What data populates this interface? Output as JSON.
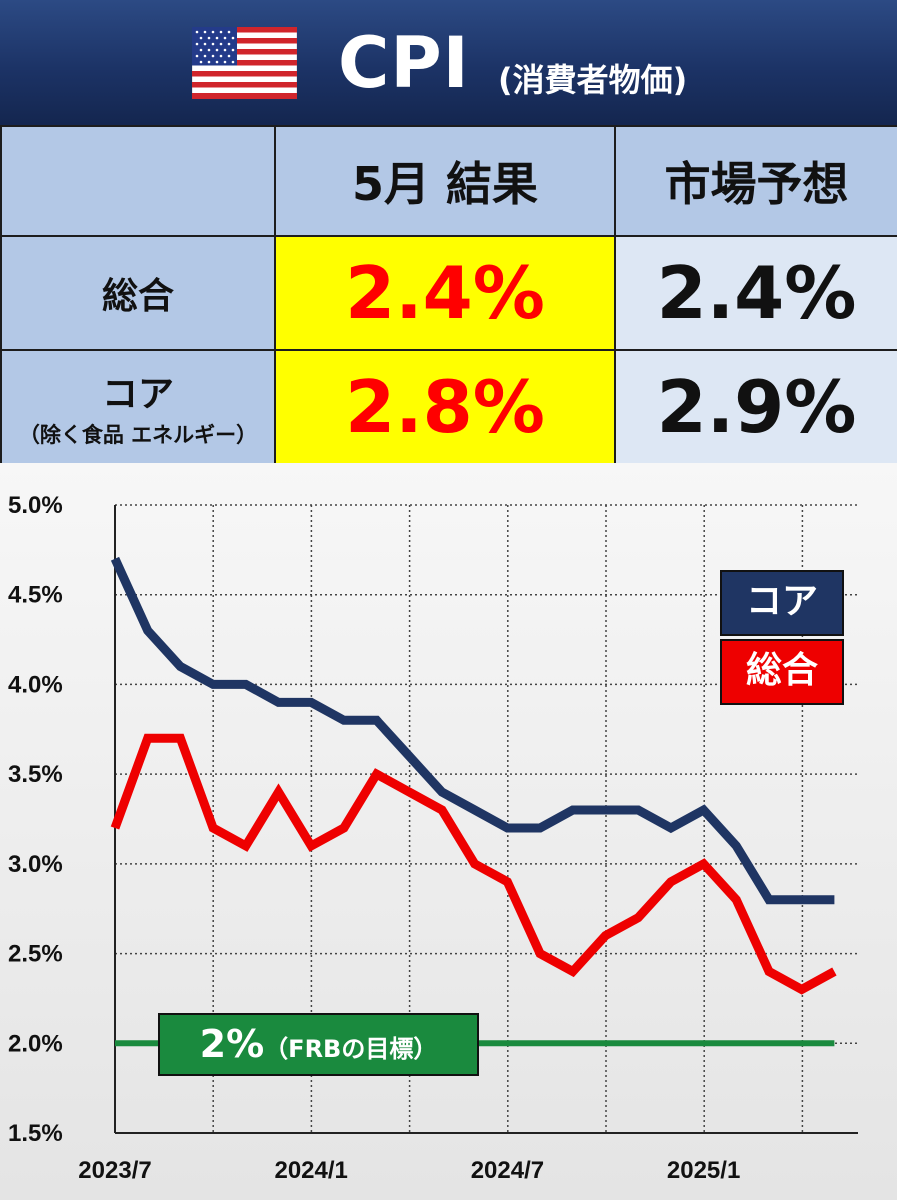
{
  "header": {
    "title": "CPI",
    "subtitle": "(消費者物価)",
    "flag_icon": "us-flag-icon"
  },
  "summary_table": {
    "columns": [
      "",
      "5月 結果",
      "市場予想"
    ],
    "rows": [
      {
        "label": "総合",
        "sublabel": "",
        "result": "2.4%",
        "forecast": "2.4%"
      },
      {
        "label": "コア",
        "sublabel": "（除く食品 エネルギー）",
        "result": "2.8%",
        "forecast": "2.9%"
      }
    ],
    "colors": {
      "header_bg": "#b3c8e6",
      "result_bg": "#ffff00",
      "forecast_bg": "#dde7f4",
      "result_text": "#ff0000"
    }
  },
  "legend": [
    {
      "label": "コア",
      "color": "#1f3563"
    },
    {
      "label": "総合",
      "color": "#ee0000"
    }
  ],
  "target_label": {
    "main": "2%",
    "sub": "（FRBの目標）",
    "color": "#1a8a3e"
  },
  "chart_data": {
    "type": "line",
    "ylim": [
      1.5,
      5.0
    ],
    "y_ticks": [
      "1.5%",
      "2.0%",
      "2.5%",
      "3.0%",
      "3.5%",
      "4.0%",
      "4.5%",
      "5.0%"
    ],
    "x_ticks": [
      "2023/7",
      "2024/1",
      "2024/7",
      "2025/1"
    ],
    "x": [
      "2023/7",
      "2023/8",
      "2023/9",
      "2023/10",
      "2023/11",
      "2023/12",
      "2024/1",
      "2024/2",
      "2024/3",
      "2024/4",
      "2024/5",
      "2024/6",
      "2024/7",
      "2024/8",
      "2024/9",
      "2024/10",
      "2024/11",
      "2024/12",
      "2025/1",
      "2025/2",
      "2025/3",
      "2025/4",
      "2025/5"
    ],
    "series": [
      {
        "name": "コア",
        "color": "#1f3563",
        "values": [
          4.7,
          4.3,
          4.1,
          4.0,
          4.0,
          3.9,
          3.9,
          3.8,
          3.8,
          3.6,
          3.4,
          3.3,
          3.2,
          3.2,
          3.3,
          3.3,
          3.3,
          3.2,
          3.3,
          3.1,
          2.8,
          2.8,
          2.8
        ]
      },
      {
        "name": "総合",
        "color": "#ee0000",
        "values": [
          3.2,
          3.7,
          3.7,
          3.2,
          3.1,
          3.4,
          3.1,
          3.2,
          3.5,
          3.4,
          3.3,
          3.0,
          2.9,
          2.5,
          2.4,
          2.6,
          2.7,
          2.9,
          3.0,
          2.8,
          2.4,
          2.3,
          2.4
        ]
      },
      {
        "name": "2%",
        "color": "#1a8a3e",
        "values": [
          2.0,
          2.0,
          2.0,
          2.0,
          2.0,
          2.0,
          2.0,
          2.0,
          2.0,
          2.0,
          2.0,
          2.0,
          2.0,
          2.0,
          2.0,
          2.0,
          2.0,
          2.0,
          2.0,
          2.0,
          2.0,
          2.0,
          2.0
        ]
      }
    ],
    "grid": true
  }
}
